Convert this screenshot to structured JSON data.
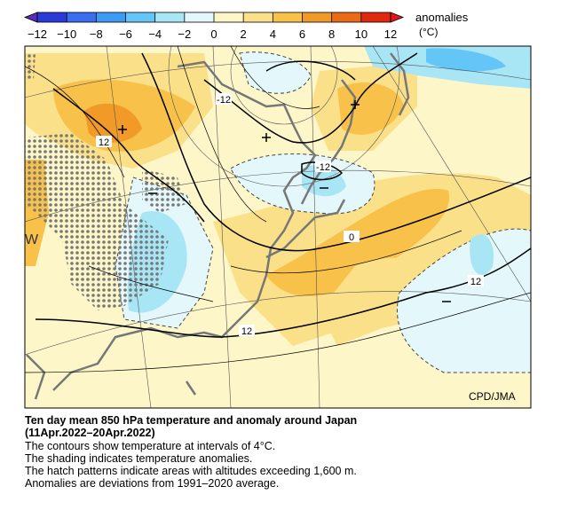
{
  "colorbar": {
    "title": "anomalies",
    "unit": "(°C)",
    "ticks": [
      {
        "value": -12,
        "label": "−12"
      },
      {
        "value": -10,
        "label": "−10"
      },
      {
        "value": -8,
        "label": "−8"
      },
      {
        "value": -6,
        "label": "−6"
      },
      {
        "value": -4,
        "label": "−4"
      },
      {
        "value": -2,
        "label": "−2"
      },
      0,
      2,
      4,
      6,
      8,
      10,
      12
    ],
    "colors": [
      "#2a3ad8",
      "#3a6ef0",
      "#3c9cf5",
      "#63c6f7",
      "#a8e6f6",
      "#e4f8fb",
      "#fdf6c8",
      "#fbe08a",
      "#f8c14a",
      "#f19a28",
      "#ea6a16",
      "#e02a10"
    ],
    "under_color": "#5b2ab8",
    "over_color": "#e01818"
  },
  "map": {
    "contour_labels": [
      "12",
      "-12",
      "-12",
      "0",
      "12",
      "12"
    ],
    "edge_letter": "W",
    "credit": "CPD/JMA"
  },
  "caption": {
    "title": "Ten day mean 850 hPa temperature and anomaly around Japan",
    "period": "(11Apr.2022–20Apr.2022)",
    "lines": [
      "The contours show temperature at intervals of 4°C.",
      "The shading indicates temperature anomalies.",
      "The hatch patterns indicate areas with altitudes exceeding 1,600 m.",
      "Anomalies are deviations from 1991–2020 average."
    ]
  }
}
